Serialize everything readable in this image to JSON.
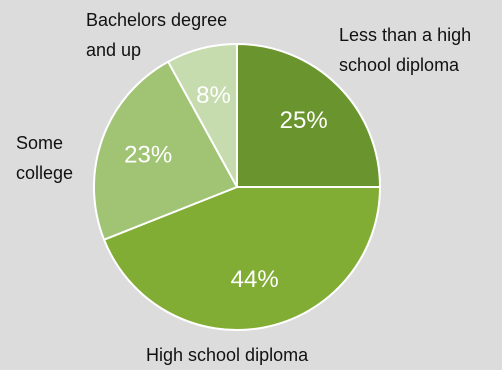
{
  "chart_data": {
    "type": "pie",
    "title": "",
    "categories": [
      "Less than a high school diploma",
      "High school diploma",
      "Some college",
      "Bachelors degree and up"
    ],
    "values": [
      25,
      44,
      23,
      8
    ],
    "value_labels": [
      "25%",
      "44%",
      "23%",
      "8%"
    ],
    "label_lines": [
      [
        "Less than a high",
        "school diploma"
      ],
      [
        "High school diploma"
      ],
      [
        "Some",
        "college"
      ],
      [
        "Bachelors degree",
        "and up"
      ]
    ],
    "colors": [
      "#6a952e",
      "#82ad34",
      "#a0c374",
      "#c6dbae"
    ],
    "start_angle": "12 o'clock, clockwise",
    "legend": "none (direct labels)"
  }
}
